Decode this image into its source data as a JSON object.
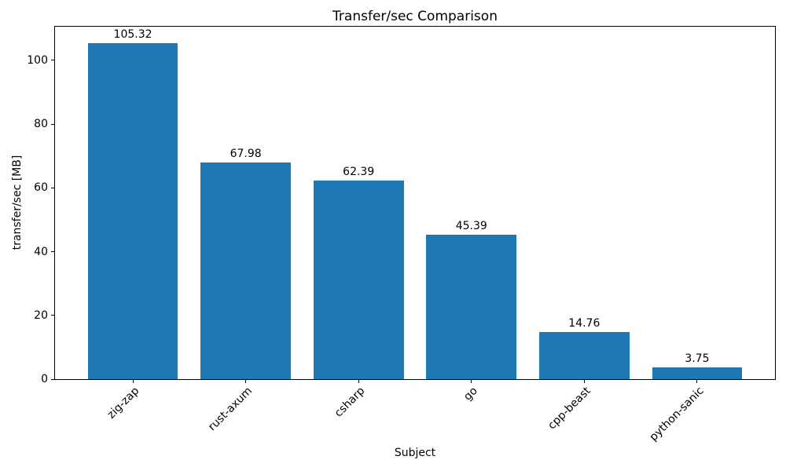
{
  "chart_data": {
    "type": "bar",
    "title": "Transfer/sec Comparison",
    "xlabel": "Subject",
    "ylabel": "transfer/sec [MB]",
    "categories": [
      "zig-zap",
      "rust-axum",
      "csharp",
      "go",
      "cpp-beast",
      "python-sanic"
    ],
    "values": [
      105.32,
      67.98,
      62.39,
      45.39,
      14.76,
      3.75
    ],
    "value_labels": [
      "105.32",
      "67.98",
      "62.39",
      "45.39",
      "14.76",
      "3.75"
    ],
    "yticks": [
      0,
      20,
      40,
      60,
      80,
      100
    ],
    "ytick_labels": [
      "0",
      "20",
      "40",
      "60",
      "80",
      "100"
    ],
    "ylim": [
      0,
      110.59
    ],
    "bar_width_fraction": 0.8,
    "bar_color": "#1f77b4",
    "axis_color": "#000000",
    "text_color": "#000000",
    "grid": false,
    "legend_position": "none"
  }
}
